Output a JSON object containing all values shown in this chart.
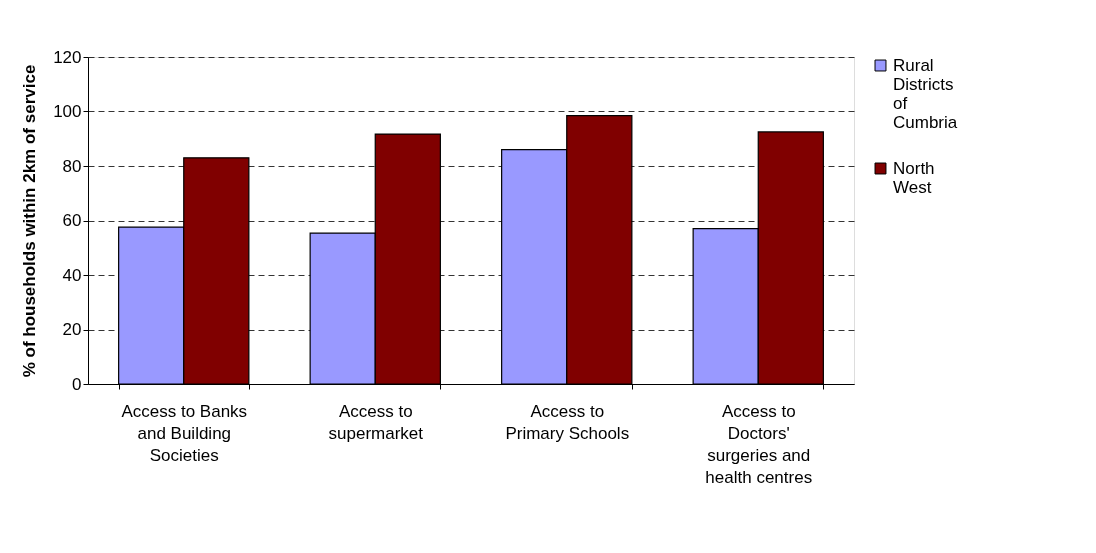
{
  "chart_data": {
    "type": "bar",
    "ylabel": "% of households within 2km of service",
    "categories": [
      "Access to Banks and Building Societies",
      "Access to supermarket",
      "Access to Primary Schools",
      "Access to Doctors' surgeries and health centres"
    ],
    "series": [
      {
        "name": "Rural Districts of Cumbria",
        "color": "#9999ff",
        "values": [
          57.6,
          55.4,
          86,
          57
        ]
      },
      {
        "name": "North West",
        "color": "#800000",
        "values": [
          83,
          91.7,
          98.5,
          92.5
        ]
      }
    ],
    "ylim": [
      0,
      120
    ],
    "yticks": [
      0,
      20,
      40,
      60,
      80,
      100,
      120
    ],
    "grid": "y",
    "legend": "right"
  }
}
